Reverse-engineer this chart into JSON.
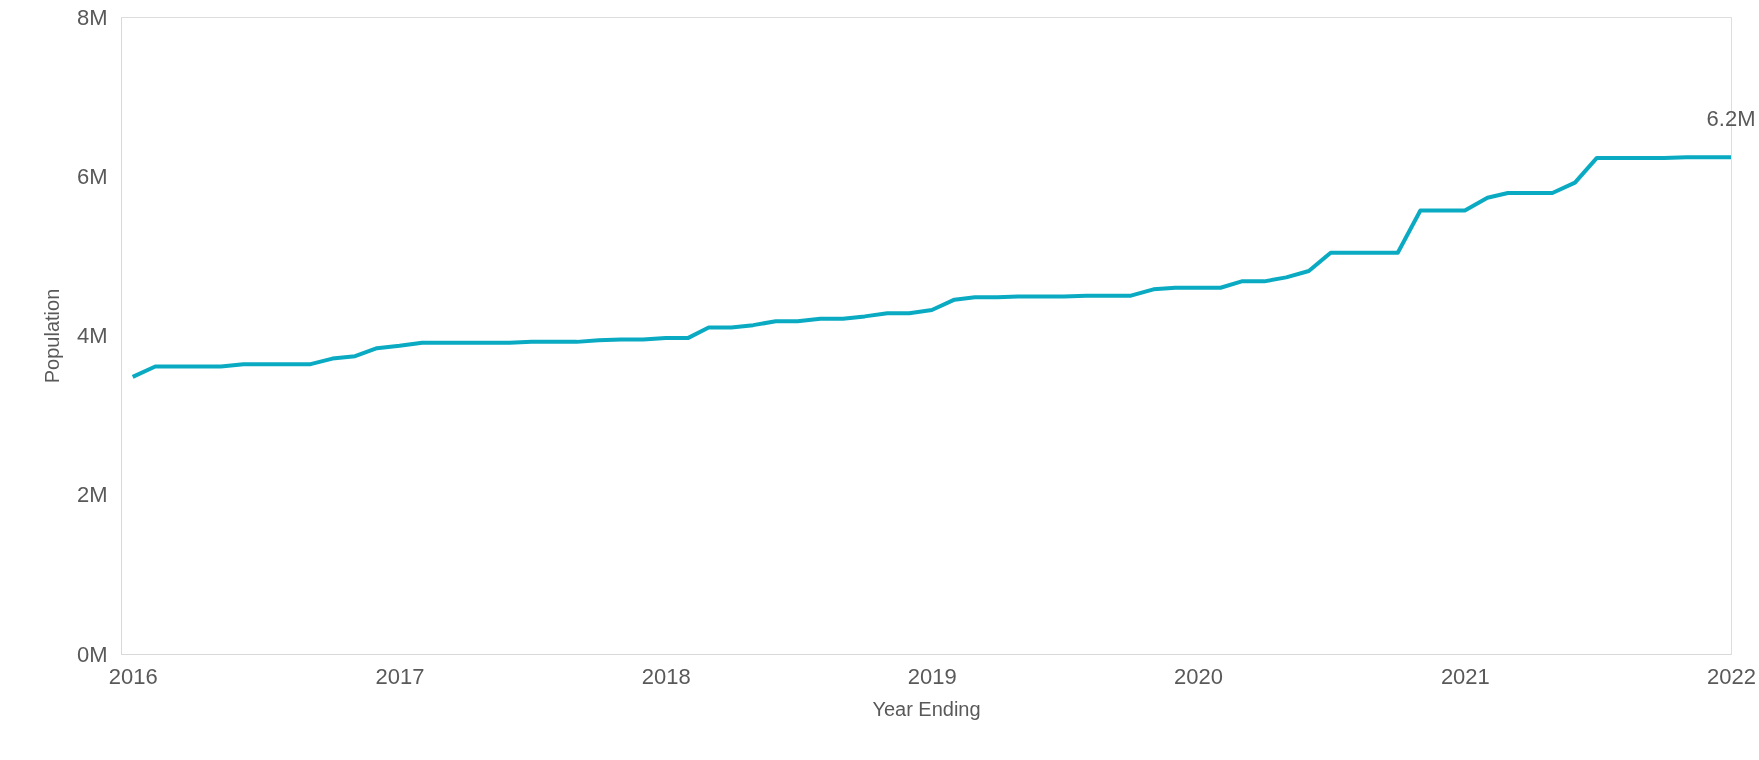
{
  "chart_data": {
    "type": "line",
    "xlabel": "Year Ending",
    "ylabel": "Population",
    "x": [
      "2016-01",
      "2016-02",
      "2016-03",
      "2016-04",
      "2016-05",
      "2016-06",
      "2016-07",
      "2016-08",
      "2016-09",
      "2016-10",
      "2016-11",
      "2016-12",
      "2017-01",
      "2017-02",
      "2017-03",
      "2017-04",
      "2017-05",
      "2017-06",
      "2017-07",
      "2017-08",
      "2017-09",
      "2017-10",
      "2017-11",
      "2017-12",
      "2018-01",
      "2018-02",
      "2018-03",
      "2018-04",
      "2018-05",
      "2018-06",
      "2018-07",
      "2018-08",
      "2018-09",
      "2018-10",
      "2018-11",
      "2018-12",
      "2019-01",
      "2019-02",
      "2019-03",
      "2019-04",
      "2019-05",
      "2019-06",
      "2019-07",
      "2019-08",
      "2019-09",
      "2019-10",
      "2019-11",
      "2019-12",
      "2020-01",
      "2020-02",
      "2020-03",
      "2020-04",
      "2020-05",
      "2020-06",
      "2020-07",
      "2020-08",
      "2020-09",
      "2020-10",
      "2020-11",
      "2020-12",
      "2021-01",
      "2021-02",
      "2021-03",
      "2021-04",
      "2021-05",
      "2021-06",
      "2021-07",
      "2021-08",
      "2021-09",
      "2021-10",
      "2021-11",
      "2021-12",
      "2022-01"
    ],
    "series": [
      {
        "color": "#0aabc2",
        "values": [
          3.48,
          3.61,
          3.61,
          3.61,
          3.61,
          3.64,
          3.64,
          3.64,
          3.64,
          3.71,
          3.74,
          3.84,
          3.87,
          3.91,
          3.91,
          3.91,
          3.91,
          3.91,
          3.92,
          3.92,
          3.92,
          3.94,
          3.95,
          3.95,
          3.97,
          3.97,
          4.1,
          4.1,
          4.13,
          4.18,
          4.18,
          4.21,
          4.21,
          4.24,
          4.28,
          4.28,
          4.32,
          4.45,
          4.48,
          4.48,
          4.49,
          4.49,
          4.49,
          4.5,
          4.5,
          4.5,
          4.58,
          4.6,
          4.6,
          4.6,
          4.68,
          4.68,
          4.73,
          4.81,
          5.04,
          5.04,
          5.04,
          5.04,
          5.57,
          5.57,
          5.57,
          5.73,
          5.79,
          5.79,
          5.79,
          5.92,
          6.23,
          6.23,
          6.23,
          6.23,
          6.24,
          6.24,
          6.24
        ]
      }
    ],
    "xlim": [
      "2015-12-16",
      "2022-01"
    ],
    "xticks": [
      "2016",
      "2017",
      "2018",
      "2019",
      "2020",
      "2021",
      "2022"
    ],
    "ylim": [
      0,
      8
    ],
    "yticks": [
      {
        "value": 0,
        "label": "0M"
      },
      {
        "value": 2,
        "label": "2M"
      },
      {
        "value": 4,
        "label": "4M"
      },
      {
        "value": 6,
        "label": "6M"
      },
      {
        "value": 8,
        "label": "8M"
      }
    ],
    "annotations": [
      {
        "text": "6.2M",
        "x": "2022-01",
        "y": 6.24
      }
    ],
    "grid": false,
    "marker": "none",
    "line_style": "solid"
  }
}
